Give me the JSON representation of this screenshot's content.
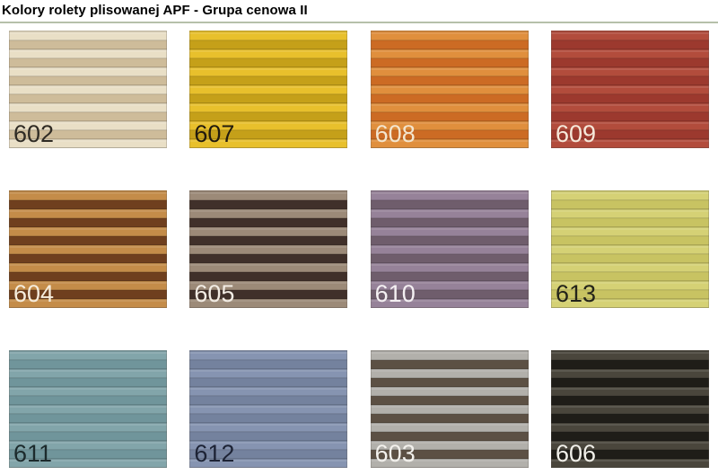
{
  "header": {
    "title": "Kolory rolety plisowanej APF - Grupa cenowa II",
    "accent_rule_color": "#b6c0aa"
  },
  "swatches": [
    {
      "code": "602",
      "name": "beige",
      "light": "#e9dfc6",
      "dark": "#cebc9a",
      "label_color": "#2f2b24"
    },
    {
      "code": "607",
      "name": "mustard",
      "light": "#e8c02c",
      "dark": "#c5a019",
      "label_color": "#211a0e"
    },
    {
      "code": "608",
      "name": "orange",
      "light": "#e08f3d",
      "dark": "#cc6b24",
      "label_color": "#f3e6d0"
    },
    {
      "code": "609",
      "name": "brick-red",
      "light": "#b24c3c",
      "dark": "#9c392e",
      "label_color": "#f5e8da"
    },
    {
      "code": "604",
      "name": "caramel-brown",
      "light": "#c48c49",
      "dark": "#6f3f1e",
      "label_color": "#f5ecdc"
    },
    {
      "code": "605",
      "name": "taupe-brown",
      "light": "#9c8a78",
      "dark": "#40302a",
      "label_color": "#f2ece4"
    },
    {
      "code": "610",
      "name": "mauve",
      "light": "#968299",
      "dark": "#6f5d6c",
      "label_color": "#f4f0f2"
    },
    {
      "code": "613",
      "name": "chartreuse",
      "light": "#d5d175",
      "dark": "#c8c362",
      "label_color": "#23231a"
    },
    {
      "code": "611",
      "name": "teal-gray",
      "light": "#82a5aa",
      "dark": "#70959b",
      "label_color": "#1c2a2c"
    },
    {
      "code": "612",
      "name": "blue-gray",
      "light": "#8694b1",
      "dark": "#74829e",
      "label_color": "#1d2335"
    },
    {
      "code": "603",
      "name": "gray-brown",
      "light": "#b2b0ab",
      "dark": "#5c5044",
      "label_color": "#f2f0ec"
    },
    {
      "code": "606",
      "name": "near-black",
      "light": "#4a463c",
      "dark": "#1f1d18",
      "label_color": "#f0efe9"
    }
  ]
}
